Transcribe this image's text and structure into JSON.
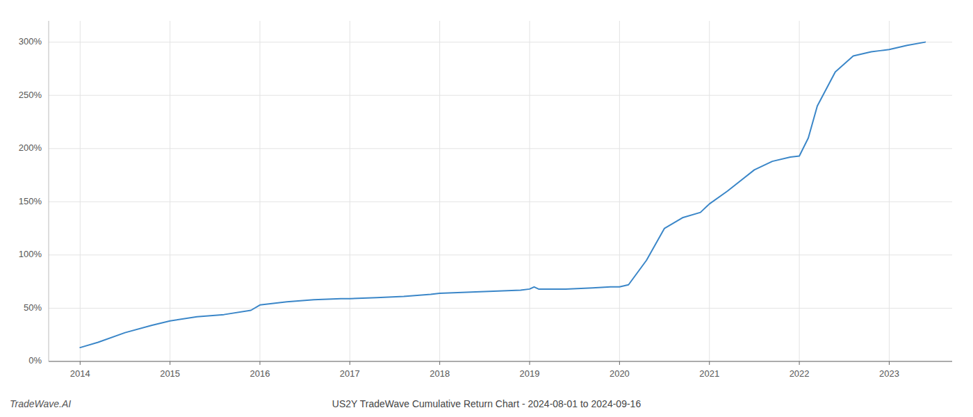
{
  "chart_data": {
    "type": "line",
    "title": "US2Y TradeWave Cumulative Return Chart - 2024-08-01 to 2024-09-16",
    "annotations": [
      "TradeWave.AI"
    ],
    "color": "#3a86c8",
    "grid": true,
    "x": [
      2014.0,
      2014.2,
      2014.5,
      2014.8,
      2015.0,
      2015.3,
      2015.6,
      2015.9,
      2016.0,
      2016.3,
      2016.6,
      2016.9,
      2017.0,
      2017.3,
      2017.6,
      2017.9,
      2018.0,
      2018.3,
      2018.6,
      2018.9,
      2019.0,
      2019.05,
      2019.1,
      2019.4,
      2019.7,
      2019.9,
      2020.0,
      2020.1,
      2020.3,
      2020.5,
      2020.7,
      2020.9,
      2021.0,
      2021.2,
      2021.5,
      2021.7,
      2021.9,
      2022.0,
      2022.1,
      2022.2,
      2022.4,
      2022.6,
      2022.8,
      2022.9,
      2023.0,
      2023.2,
      2023.4
    ],
    "values": [
      13,
      18,
      27,
      34,
      38,
      42,
      44,
      48,
      53,
      56,
      58,
      59,
      59,
      60,
      61,
      63,
      64,
      65,
      66,
      67,
      68,
      70,
      68,
      68,
      69,
      70,
      70,
      72,
      95,
      125,
      135,
      140,
      148,
      160,
      180,
      188,
      192,
      193,
      210,
      240,
      272,
      287,
      291,
      292,
      293,
      297,
      300
    ],
    "xlim": [
      2013.65,
      2023.7
    ],
    "xticks": [
      2014,
      2015,
      2016,
      2017,
      2018,
      2019,
      2020,
      2021,
      2022,
      2023
    ],
    "ylim": [
      0,
      320
    ],
    "yticks": [
      {
        "value": 0,
        "label": "0%"
      },
      {
        "value": 50,
        "label": "50%"
      },
      {
        "value": 100,
        "label": "100%"
      },
      {
        "value": 150,
        "label": "150%"
      },
      {
        "value": 200,
        "label": "200%"
      },
      {
        "value": 250,
        "label": "250%"
      },
      {
        "value": 300,
        "label": "300%"
      }
    ]
  }
}
